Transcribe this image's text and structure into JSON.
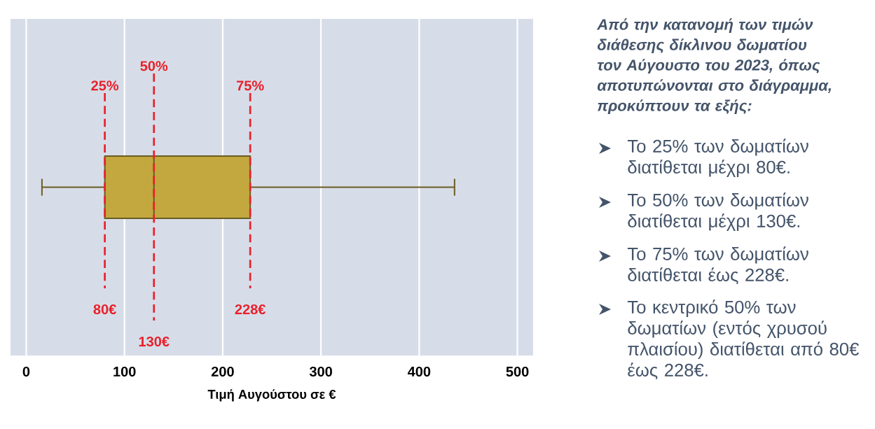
{
  "chart_data": [
    {
      "type": "box",
      "orientation": "horizontal",
      "categories": [
        null
      ],
      "color": "#c2a83e",
      "boxes": [
        {
          "low": 16,
          "q1": 80,
          "median": 130,
          "q3": 228,
          "high": 436
        }
      ],
      "xlim": [
        -16,
        516
      ],
      "xticks": [
        0,
        100,
        200,
        300,
        400,
        500
      ],
      "xlabel": "Τιμή Αυγούστου σε €",
      "grid": "x",
      "tick_labels": "x",
      "ref_lines": [
        {
          "axis": "x",
          "value": 80,
          "label": "80€",
          "color": "#e8202a",
          "line_style": "dashed"
        },
        {
          "axis": "x",
          "value": 130,
          "label": "130€",
          "color": "#e8202a",
          "line_style": "dashed"
        },
        {
          "axis": "x",
          "value": 228,
          "label": "228€",
          "color": "#e8202a",
          "line_style": "dashed"
        }
      ],
      "annotations": [
        "25%",
        "50%",
        "75%"
      ]
    },
    {
      "type": "other",
      "title": "Από την κατανομή των τιμών διάθεσης δίκλινου δωματίου τον Αύγουστο του 2023, όπως αποτυπώνονται στο διάγραμμα, προκύπτουν τα εξής:",
      "annotations": [
        "Το 25% των δωματίων διατίθεται μέχρι 80€.",
        "Το 50% των δωματίων διατίθεται μέχρι 130€.",
        "Το 75% των δωματίων διατίθεται έως 228€.",
        "Το κεντρικό 50% των δωματίων (εντός χρυσού πλαισίου) διατίθεται από 80€ έως 228€."
      ]
    }
  ]
}
